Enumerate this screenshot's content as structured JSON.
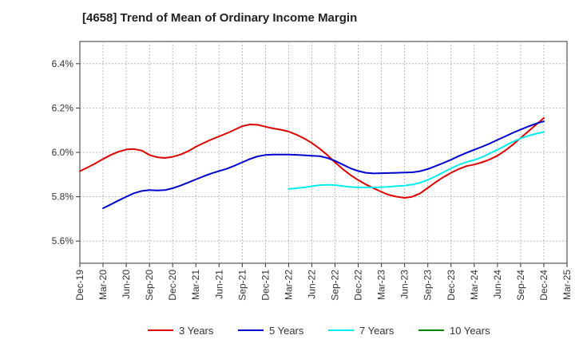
{
  "chart_data": {
    "type": "line",
    "title": "[4658]  Trend of Mean of Ordinary Income Margin",
    "x_ticks": [
      "Dec-19",
      "Mar-20",
      "Jun-20",
      "Sep-20",
      "Dec-20",
      "Mar-21",
      "Jun-21",
      "Sep-21",
      "Dec-21",
      "Mar-22",
      "Jun-22",
      "Sep-22",
      "Dec-22",
      "Mar-23",
      "Jun-23",
      "Sep-23",
      "Dec-23",
      "Mar-24",
      "Jun-24",
      "Sep-24",
      "Dec-24",
      "Mar-25"
    ],
    "y_ticks": [
      "5.6%",
      "5.8%",
      "6.0%",
      "6.2%",
      "6.4%"
    ],
    "y_tick_values": [
      5.6,
      5.8,
      6.0,
      6.2,
      6.4
    ],
    "ylim": [
      5.5,
      6.5
    ],
    "grid": true,
    "legend_position": "bottom",
    "series": [
      {
        "name": "3 Years",
        "color": "#dd0000",
        "x": [
          "Dec-19",
          "Jan-20",
          "Feb-20",
          "Mar-20",
          "Apr-20",
          "May-20",
          "Jun-20",
          "Jul-20",
          "Aug-20",
          "Sep-20",
          "Oct-20",
          "Nov-20",
          "Dec-20",
          "Jan-21",
          "Feb-21",
          "Mar-21",
          "Apr-21",
          "May-21",
          "Jun-21",
          "Jul-21",
          "Aug-21",
          "Sep-21",
          "Oct-21",
          "Nov-21",
          "Dec-21",
          "Jan-22",
          "Feb-22",
          "Mar-22",
          "Apr-22",
          "May-22",
          "Jun-22",
          "Jul-22",
          "Aug-22",
          "Sep-22",
          "Oct-22",
          "Nov-22",
          "Dec-22",
          "Jan-23",
          "Feb-23",
          "Mar-23",
          "Apr-23",
          "May-23",
          "Jun-23",
          "Jul-23",
          "Aug-23",
          "Sep-23",
          "Oct-23",
          "Nov-23",
          "Dec-23",
          "Jan-24",
          "Feb-24",
          "Mar-24",
          "Apr-24",
          "May-24",
          "Jun-24",
          "Jul-24",
          "Aug-24",
          "Sep-24",
          "Oct-24",
          "Nov-24",
          "Dec-24"
        ],
        "values": [
          5.915,
          5.932,
          5.95,
          5.97,
          5.988,
          6.003,
          6.013,
          6.015,
          6.008,
          5.988,
          5.978,
          5.975,
          5.98,
          5.99,
          6.005,
          6.025,
          6.042,
          6.058,
          6.072,
          6.086,
          6.102,
          6.118,
          6.126,
          6.124,
          6.116,
          6.108,
          6.102,
          6.094,
          6.08,
          6.063,
          6.042,
          6.017,
          5.988,
          5.955,
          5.925,
          5.898,
          5.875,
          5.855,
          5.838,
          5.822,
          5.808,
          5.8,
          5.795,
          5.8,
          5.815,
          5.84,
          5.865,
          5.888,
          5.908,
          5.925,
          5.938,
          5.945,
          5.955,
          5.968,
          5.985,
          6.008,
          6.035,
          6.065,
          6.095,
          6.125,
          6.155
        ]
      },
      {
        "name": "5 Years",
        "color": "#0000cc",
        "x": [
          "Mar-20",
          "Apr-20",
          "May-20",
          "Jun-20",
          "Jul-20",
          "Aug-20",
          "Sep-20",
          "Oct-20",
          "Nov-20",
          "Dec-20",
          "Jan-21",
          "Feb-21",
          "Mar-21",
          "Apr-21",
          "May-21",
          "Jun-21",
          "Jul-21",
          "Aug-21",
          "Sep-21",
          "Oct-21",
          "Nov-21",
          "Dec-21",
          "Jan-22",
          "Feb-22",
          "Mar-22",
          "Apr-22",
          "May-22",
          "Jun-22",
          "Jul-22",
          "Aug-22",
          "Sep-22",
          "Oct-22",
          "Nov-22",
          "Dec-22",
          "Jan-23",
          "Feb-23",
          "Mar-23",
          "Apr-23",
          "May-23",
          "Jun-23",
          "Jul-23",
          "Aug-23",
          "Sep-23",
          "Oct-23",
          "Nov-23",
          "Dec-23",
          "Jan-24",
          "Feb-24",
          "Mar-24",
          "Apr-24",
          "May-24",
          "Jun-24",
          "Jul-24",
          "Aug-24",
          "Sep-24",
          "Oct-24",
          "Nov-24",
          "Dec-24"
        ],
        "values": [
          5.748,
          5.765,
          5.783,
          5.8,
          5.816,
          5.826,
          5.83,
          5.828,
          5.83,
          5.838,
          5.85,
          5.864,
          5.878,
          5.892,
          5.905,
          5.916,
          5.926,
          5.94,
          5.955,
          5.97,
          5.982,
          5.988,
          5.99,
          5.99,
          5.99,
          5.989,
          5.987,
          5.985,
          5.983,
          5.975,
          5.962,
          5.945,
          5.928,
          5.916,
          5.908,
          5.905,
          5.906,
          5.907,
          5.908,
          5.909,
          5.91,
          5.915,
          5.925,
          5.938,
          5.952,
          5.967,
          5.983,
          5.998,
          6.012,
          6.025,
          6.04,
          6.056,
          6.072,
          6.088,
          6.103,
          6.117,
          6.13,
          6.14
        ]
      },
      {
        "name": "7 Years",
        "color": "#00eeee",
        "x": [
          "Mar-22",
          "Apr-22",
          "May-22",
          "Jun-22",
          "Jul-22",
          "Aug-22",
          "Sep-22",
          "Oct-22",
          "Nov-22",
          "Dec-22",
          "Jan-23",
          "Feb-23",
          "Mar-23",
          "Apr-23",
          "May-23",
          "Jun-23",
          "Jul-23",
          "Aug-23",
          "Sep-23",
          "Oct-23",
          "Nov-23",
          "Dec-23",
          "Jan-24",
          "Feb-24",
          "Mar-24",
          "Apr-24",
          "May-24",
          "Jun-24",
          "Jul-24",
          "Aug-24",
          "Sep-24",
          "Oct-24",
          "Nov-24",
          "Dec-24"
        ],
        "values": [
          5.835,
          5.838,
          5.842,
          5.847,
          5.852,
          5.854,
          5.852,
          5.848,
          5.844,
          5.842,
          5.842,
          5.842,
          5.843,
          5.845,
          5.848,
          5.85,
          5.855,
          5.863,
          5.876,
          5.892,
          5.91,
          5.928,
          5.944,
          5.956,
          5.966,
          5.978,
          5.995,
          6.012,
          6.03,
          6.048,
          6.063,
          6.075,
          6.084,
          6.092
        ]
      },
      {
        "name": "10 Years",
        "color": "#008800",
        "x": [],
        "values": []
      }
    ]
  }
}
